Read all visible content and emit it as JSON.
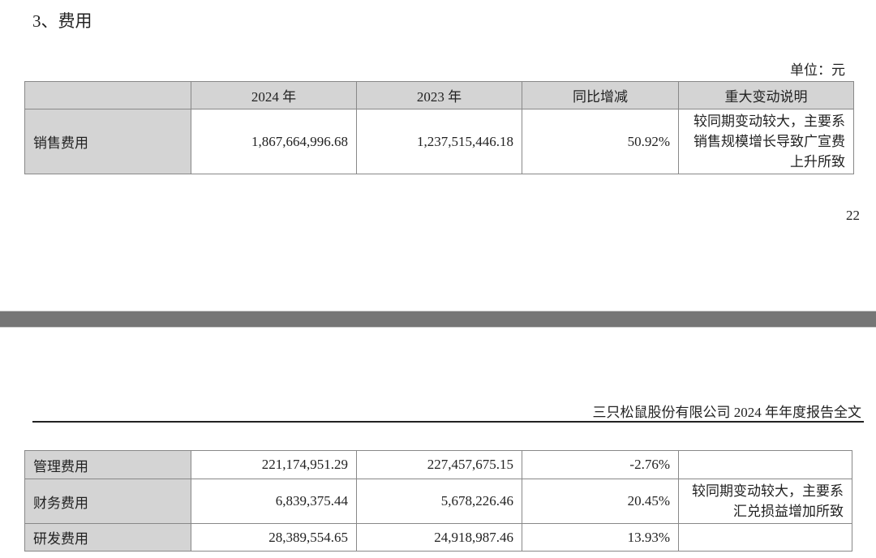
{
  "section_title": "3、费用",
  "unit_label": "单位：元",
  "page_number": "22",
  "footer_text": "三只松鼠股份有限公司 2024 年年度报告全文",
  "table": {
    "headers": [
      "",
      "2024 年",
      "2023 年",
      "同比增减",
      "重大变动说明"
    ],
    "rows": [
      {
        "name": "销售费用",
        "y2024": "1,867,664,996.68",
        "y2023": "1,237,515,446.18",
        "change": "50.92%",
        "note": "较同期变动较大，主要系销售规模增长导致广宣费上升所致"
      },
      {
        "name": "管理费用",
        "y2024": "221,174,951.29",
        "y2023": "227,457,675.15",
        "change": "-2.76%",
        "note": ""
      },
      {
        "name": "财务费用",
        "y2024": "6,839,375.44",
        "y2023": "5,678,226.46",
        "change": "20.45%",
        "note": "较同期变动较大，主要系汇兑损益增加所致"
      },
      {
        "name": "研发费用",
        "y2024": "28,389,554.65",
        "y2023": "24,918,987.46",
        "change": "13.93%",
        "note": ""
      }
    ]
  },
  "colors": {
    "header_fill": "#d4d4d4",
    "page_separator": "#767676"
  }
}
